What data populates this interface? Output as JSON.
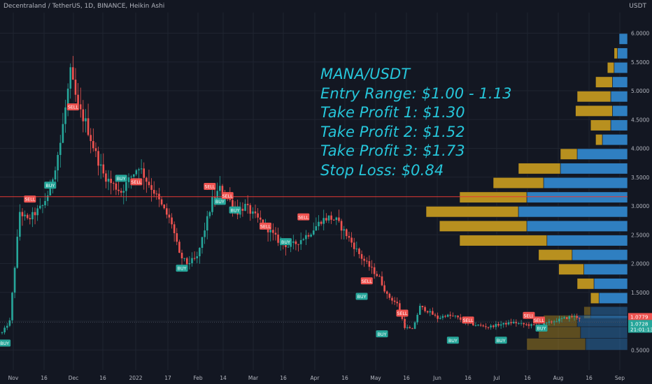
{
  "header": {
    "title": "Decentraland / TetherUS, 1D, BINANCE, Heikin Ashi",
    "unit": "USDT"
  },
  "annotation": [
    "MANA/USDT",
    "Entry Range: $1.00 - 1.13",
    "Take Profit 1: $1.30",
    "Take Profit 2: $1.52",
    "Take Profit 3: $1.73",
    "Stop Loss: $0.84"
  ],
  "colors": {
    "background": "#131722",
    "grid": "#1f2430",
    "up": "#26a69a",
    "down": "#ef5350",
    "annotation_text": "#26c6da",
    "resistance_line": "#e53935",
    "profile_up": "#2f7fc1",
    "profile_down": "#b8901f",
    "buy_label": "#26a69a",
    "sell_label": "#ef5350"
  },
  "chart_data": {
    "type": "candlestick",
    "x_ticks": [
      "Nov",
      "16",
      "Dec",
      "16",
      "2022",
      "17",
      "Feb",
      "14",
      "Mar",
      "16",
      "Apr",
      "16",
      "May",
      "16",
      "Jun",
      "16",
      "Jul",
      "16",
      "Aug",
      "16",
      "Sep"
    ],
    "y_ticks": [
      "6.0000",
      "5.5000",
      "5.0000",
      "4.5000",
      "4.0000",
      "3.5000",
      "3.0000",
      "2.5000",
      "2.0000",
      "1.5000",
      "1.0000",
      "0.5000"
    ],
    "ylim": [
      0.25,
      6.25
    ],
    "price_path": [
      [
        0,
        0.8
      ],
      [
        3,
        1.0
      ],
      [
        7,
        2.9
      ],
      [
        10,
        2.75
      ],
      [
        16,
        3.0
      ],
      [
        19,
        3.3
      ],
      [
        23,
        4.1
      ],
      [
        27,
        5.3
      ],
      [
        30,
        4.7
      ],
      [
        33,
        4.45
      ],
      [
        37,
        3.9
      ],
      [
        40,
        3.55
      ],
      [
        43,
        3.4
      ],
      [
        47,
        3.25
      ],
      [
        50,
        3.45
      ],
      [
        54,
        3.7
      ],
      [
        57,
        3.45
      ],
      [
        60,
        3.25
      ],
      [
        63,
        3.0
      ],
      [
        67,
        2.7
      ],
      [
        70,
        2.15
      ],
      [
        73,
        2.0
      ],
      [
        77,
        2.1
      ],
      [
        80,
        2.6
      ],
      [
        83,
        3.1
      ],
      [
        86,
        3.3
      ],
      [
        89,
        3.15
      ],
      [
        93,
        2.9
      ],
      [
        96,
        3.0
      ],
      [
        99,
        2.85
      ],
      [
        103,
        2.7
      ],
      [
        106,
        2.55
      ],
      [
        109,
        2.4
      ],
      [
        113,
        2.3
      ],
      [
        116,
        2.35
      ],
      [
        119,
        2.45
      ],
      [
        122,
        2.55
      ],
      [
        126,
        2.75
      ],
      [
        129,
        2.8
      ],
      [
        132,
        2.75
      ],
      [
        136,
        2.5
      ],
      [
        139,
        2.3
      ],
      [
        142,
        2.1
      ],
      [
        146,
        1.9
      ],
      [
        149,
        1.75
      ],
      [
        152,
        1.45
      ],
      [
        156,
        1.3
      ],
      [
        159,
        0.9
      ],
      [
        162,
        0.85
      ],
      [
        165,
        1.25
      ],
      [
        169,
        1.15
      ],
      [
        172,
        1.05
      ],
      [
        175,
        1.1
      ],
      [
        179,
        1.08
      ],
      [
        182,
        1.0
      ],
      [
        185,
        0.95
      ],
      [
        189,
        0.92
      ],
      [
        192,
        0.9
      ],
      [
        195,
        0.93
      ],
      [
        199,
        0.96
      ],
      [
        202,
        0.98
      ],
      [
        205,
        0.95
      ],
      [
        209,
        0.93
      ],
      [
        212,
        0.92
      ],
      [
        215,
        0.96
      ],
      [
        218,
        1.0
      ],
      [
        222,
        1.05
      ],
      [
        225,
        1.08
      ],
      [
        228,
        1.07
      ]
    ],
    "signals": [
      {
        "label": "BUY",
        "day": 1,
        "price": 0.62
      },
      {
        "label": "SELL",
        "day": 11,
        "price": 3.12
      },
      {
        "label": "BUY",
        "day": 19,
        "price": 3.36
      },
      {
        "label": "SELL",
        "day": 28,
        "price": 4.72
      },
      {
        "label": "BUY",
        "day": 47,
        "price": 3.48
      },
      {
        "label": "SELL",
        "day": 53,
        "price": 3.42
      },
      {
        "label": "BUY",
        "day": 71,
        "price": 1.92
      },
      {
        "label": "SELL",
        "day": 82,
        "price": 3.34
      },
      {
        "label": "BUY",
        "day": 86,
        "price": 3.08
      },
      {
        "label": "SELL",
        "day": 89,
        "price": 3.18
      },
      {
        "label": "BUY",
        "day": 92,
        "price": 2.93
      },
      {
        "label": "SELL",
        "day": 104,
        "price": 2.65
      },
      {
        "label": "BUY",
        "day": 112,
        "price": 2.38
      },
      {
        "label": "SELL",
        "day": 119,
        "price": 2.81
      },
      {
        "label": "SELL",
        "day": 144,
        "price": 1.7
      },
      {
        "label": "BUY",
        "day": 142,
        "price": 1.43
      },
      {
        "label": "SELL",
        "day": 158,
        "price": 1.14
      },
      {
        "label": "BUY",
        "day": 150,
        "price": 0.78
      },
      {
        "label": "SELL",
        "day": 184,
        "price": 1.02
      },
      {
        "label": "BUY",
        "day": 178,
        "price": 0.67
      },
      {
        "label": "SELL",
        "day": 208,
        "price": 1.1
      },
      {
        "label": "BUY",
        "day": 197,
        "price": 0.67
      },
      {
        "label": "SELL",
        "day": 212,
        "price": 1.02
      },
      {
        "label": "BUY",
        "day": 213,
        "price": 0.88
      }
    ],
    "horizontal_line": {
      "price": 3.16
    },
    "volume_profile": [
      {
        "price": 5.9,
        "up": 0.05,
        "down": 0.0
      },
      {
        "price": 5.65,
        "up": 0.06,
        "down": 0.02
      },
      {
        "price": 5.4,
        "up": 0.08,
        "down": 0.04
      },
      {
        "price": 5.15,
        "up": 0.09,
        "down": 0.1
      },
      {
        "price": 4.9,
        "up": 0.1,
        "down": 0.2
      },
      {
        "price": 4.65,
        "up": 0.09,
        "down": 0.22
      },
      {
        "price": 4.4,
        "up": 0.1,
        "down": 0.12
      },
      {
        "price": 4.15,
        "up": 0.15,
        "down": 0.04
      },
      {
        "price": 3.9,
        "up": 0.3,
        "down": 0.1
      },
      {
        "price": 3.65,
        "up": 0.4,
        "down": 0.25
      },
      {
        "price": 3.4,
        "up": 0.5,
        "down": 0.3
      },
      {
        "price": 3.15,
        "up": 0.6,
        "down": 0.4
      },
      {
        "price": 2.9,
        "up": 0.65,
        "down": 0.55
      },
      {
        "price": 2.65,
        "up": 0.6,
        "down": 0.52
      },
      {
        "price": 2.4,
        "up": 0.48,
        "down": 0.52
      },
      {
        "price": 2.15,
        "up": 0.33,
        "down": 0.2
      },
      {
        "price": 1.9,
        "up": 0.26,
        "down": 0.15
      },
      {
        "price": 1.65,
        "up": 0.2,
        "down": 0.1
      },
      {
        "price": 1.4,
        "up": 0.17,
        "down": 0.05
      },
      {
        "price": 1.15,
        "up": 0.22,
        "down": 0.04
      },
      {
        "price": 1.0,
        "up": 0.3,
        "down": 0.2
      },
      {
        "price": 0.8,
        "up": 0.28,
        "down": 0.25
      },
      {
        "price": 0.6,
        "up": 0.25,
        "down": 0.35
      }
    ],
    "price_labels": [
      {
        "text": "1.0779",
        "price": 1.08,
        "color": "#ef5350"
      },
      {
        "text": "1.0728",
        "price": 0.96,
        "color": "#26a69a"
      },
      {
        "text": "21:01:13",
        "price": 0.86,
        "color": "#26a69a"
      }
    ]
  }
}
